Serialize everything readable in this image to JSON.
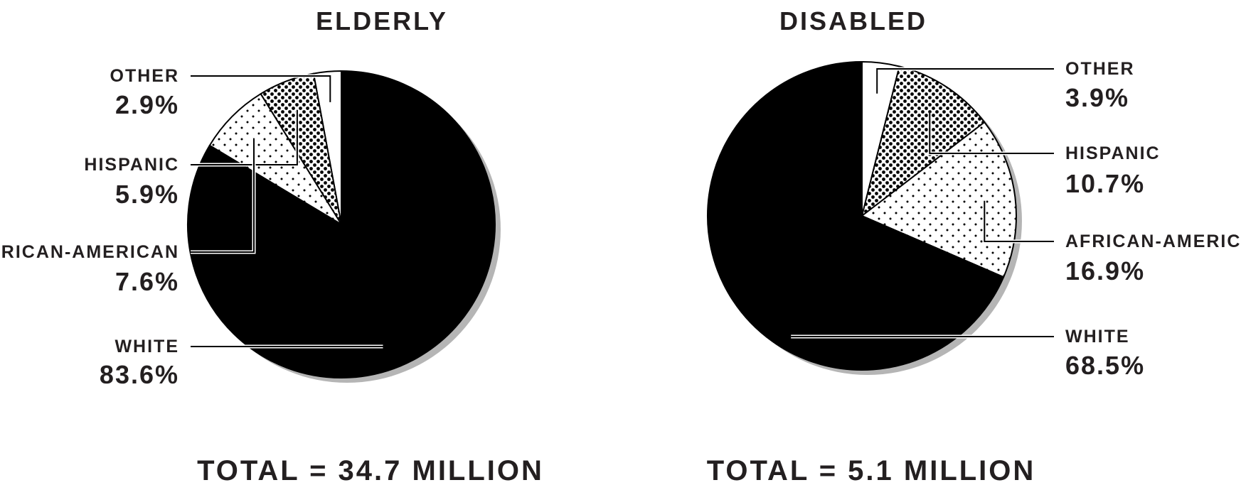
{
  "chart_data": [
    {
      "type": "pie",
      "title": "ELDERLY",
      "total_label": "TOTAL = 34.7 MILLION",
      "slices": [
        {
          "label": "OTHER",
          "value": 2.9,
          "value_label": "2.9%",
          "fill": "plain"
        },
        {
          "label": "HISPANIC",
          "value": 5.9,
          "value_label": "5.9%",
          "fill": "dense-dots"
        },
        {
          "label": "AFRICAN-AMERICAN",
          "value": 7.6,
          "value_label": "7.6%",
          "fill": "sparse-dots"
        },
        {
          "label": "WHITE",
          "value": 83.6,
          "value_label": "83.6%",
          "fill": "black"
        }
      ],
      "slice_order": "counter-clockwise from top",
      "legend": "left"
    },
    {
      "type": "pie",
      "title": "DISABLED",
      "total_label": "TOTAL = 5.1 MILLION",
      "slices": [
        {
          "label": "OTHER",
          "value": 3.9,
          "value_label": "3.9%",
          "fill": "plain"
        },
        {
          "label": "HISPANIC",
          "value": 10.7,
          "value_label": "10.7%",
          "fill": "dense-dots"
        },
        {
          "label": "AFRICAN-AMERICAN",
          "value": 16.9,
          "value_label": "16.9%",
          "fill": "sparse-dots"
        },
        {
          "label": "WHITE",
          "value": 68.5,
          "value_label": "68.5%",
          "fill": "black"
        }
      ],
      "slice_order": "clockwise from top",
      "legend": "right"
    }
  ],
  "colors": {
    "ink": "#000000",
    "text": "#231f20",
    "shadow": "#b5b5b5",
    "paper": "#ffffff"
  }
}
